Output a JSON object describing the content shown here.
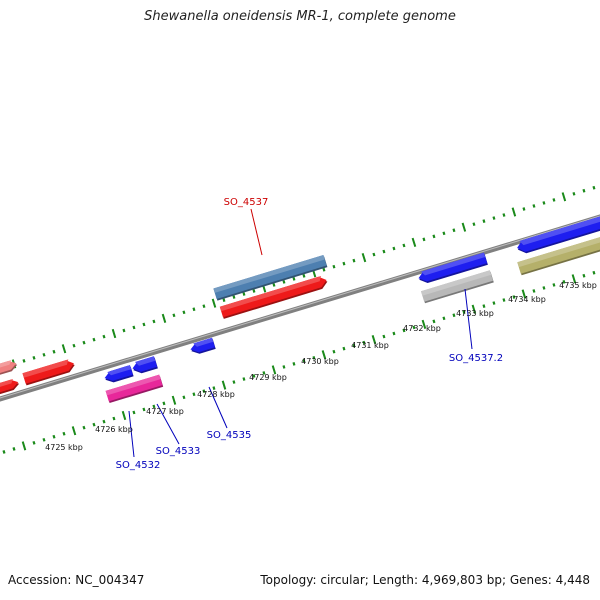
{
  "title": "Shewanella oneidensis MR-1, complete genome",
  "footer": {
    "accession": "Accession: NC_004347",
    "stats": "Topology: circular; Length: 4,969,803 bp; Genes: 4,448"
  },
  "colors": {
    "forward_gene": "#1e1ef0",
    "reverse_gene": "#ee1a1a",
    "reverse_gene_light": "#f08080",
    "selected_gene": "#4d7fb0",
    "rna_gene": "#e8279a",
    "gray_gene": "#b8b8b8",
    "olive_gene": "#b5b06a",
    "backbone": "#808080",
    "ticks": "#1a8a1a",
    "label_red": "#cc0000",
    "label_blue": "#0000bb"
  },
  "ticks": [
    {
      "label": "4725 kbp"
    },
    {
      "label": "4726 kbp"
    },
    {
      "label": "4727 kbp"
    },
    {
      "label": "4728 kbp"
    },
    {
      "label": "4729 kbp"
    },
    {
      "label": "4730 kbp"
    },
    {
      "label": "4731 kbp"
    },
    {
      "label": "4732 kbp"
    },
    {
      "label": "4733 kbp"
    },
    {
      "label": "4734 kbp"
    },
    {
      "label": "4735 kbp"
    }
  ],
  "gene_labels": [
    {
      "label": "SO_4537"
    },
    {
      "label": "SO_4537.2"
    },
    {
      "label": "SO_4535"
    },
    {
      "label": "SO_4533"
    },
    {
      "label": "SO_4532"
    }
  ]
}
